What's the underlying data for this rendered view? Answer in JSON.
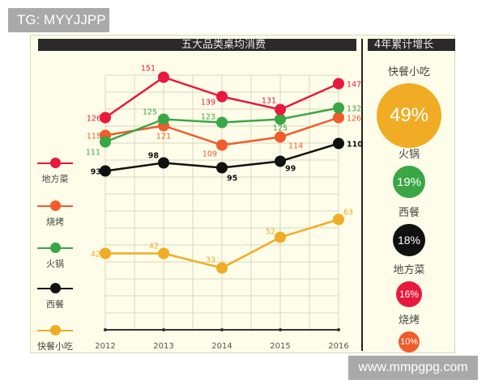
{
  "watermark_top": "TG: MYYJJPP",
  "watermark_bottom": "www.mmpgpg.com",
  "headers": {
    "left": "五大品类桌均消费",
    "right": "4年累计增长"
  },
  "legend": [
    {
      "label": "地方菜",
      "color": "#e8193c"
    },
    {
      "label": "烧烤",
      "color": "#f25b2a"
    },
    {
      "label": "火锅",
      "color": "#3aa646"
    },
    {
      "label": "西餐",
      "color": "#111111"
    },
    {
      "label": "快餐小吃",
      "color": "#f0ac24"
    }
  ],
  "growth": [
    {
      "label": "快餐小吃",
      "value": "49%",
      "color": "#f0ac24"
    },
    {
      "label": "火锅",
      "value": "19%",
      "color": "#3aa646"
    },
    {
      "label": "西餐",
      "value": "18%",
      "color": "#111111"
    },
    {
      "label": "地方菜",
      "value": "16%",
      "color": "#e8193c"
    },
    {
      "label": "烧烤",
      "value": "10%",
      "color": "#f25b2a"
    }
  ],
  "chart_data": {
    "type": "line",
    "title": "五大品类桌均消费",
    "xlabel": "",
    "ylabel": "",
    "x": [
      "2012",
      "2013",
      "2014",
      "2015",
      "2016"
    ],
    "series": [
      {
        "name": "地方菜",
        "color": "#e8193c",
        "values": [
          126,
          151,
          139,
          131,
          147
        ]
      },
      {
        "name": "烧烤",
        "color": "#f25b2a",
        "values": [
          115,
          121,
          109,
          114,
          126
        ]
      },
      {
        "name": "火锅",
        "color": "#3aa646",
        "values": [
          111,
          125,
          123,
          125,
          132
        ]
      },
      {
        "name": "西餐",
        "color": "#111111",
        "values": [
          93,
          98,
          95,
          99,
          110
        ]
      },
      {
        "name": "快餐小吃",
        "color": "#f0ac24",
        "values": [
          42,
          42,
          33,
          52,
          63
        ]
      }
    ],
    "grid": true,
    "legend_position": "left",
    "side_panel": {
      "title": "4年累计增长",
      "items": [
        {
          "name": "快餐小吃",
          "value": 49
        },
        {
          "name": "火锅",
          "value": 19
        },
        {
          "name": "西餐",
          "value": 18
        },
        {
          "name": "地方菜",
          "value": 16
        },
        {
          "name": "烧烤",
          "value": 10
        }
      ]
    }
  }
}
